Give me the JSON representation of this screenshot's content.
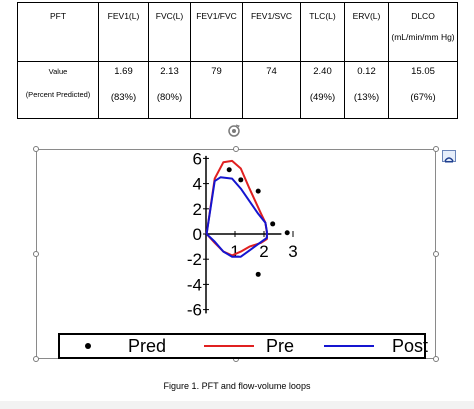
{
  "table": {
    "headers": [
      {
        "lines": [
          "PFT"
        ]
      },
      {
        "lines": [
          "FEV1(L)"
        ]
      },
      {
        "lines": [
          "FVC(L)"
        ]
      },
      {
        "lines": [
          "FEV1/FVC"
        ]
      },
      {
        "lines": [
          "FEV1/SVC"
        ]
      },
      {
        "lines": [
          "TLC(L)"
        ]
      },
      {
        "lines": [
          "ERV(L)"
        ]
      },
      {
        "lines": [
          "DLCO",
          "(mL/min/mm Hg)"
        ]
      }
    ],
    "row_label": [
      "Value",
      "(Percent Predicted)"
    ],
    "rows": [
      {
        "value": "1.69",
        "percent": "(83%)"
      },
      {
        "value": "2.13",
        "percent": "(80%)"
      },
      {
        "value": "79",
        "percent": ""
      },
      {
        "value": "74",
        "percent": ""
      },
      {
        "value": "2.40",
        "percent": "(49%)"
      },
      {
        "value": "0.12",
        "percent": "(13%)"
      },
      {
        "value": "15.05",
        "percent": "(67%)"
      }
    ]
  },
  "chart_data": {
    "type": "line",
    "title": "",
    "xlabel": "",
    "ylabel": "",
    "x_ticks": [
      "1",
      "2",
      "3"
    ],
    "y_ticks": [
      "6",
      "4",
      "2",
      "0",
      "-2",
      "-4",
      "-6"
    ],
    "xlim": [
      0,
      3.5
    ],
    "ylim": [
      -6.5,
      6.5
    ],
    "series": [
      {
        "name": "Pred",
        "style": "points",
        "color": "#000000",
        "points": [
          [
            0.8,
            5.1
          ],
          [
            1.2,
            4.3
          ],
          [
            1.8,
            3.4
          ],
          [
            2.3,
            0.8
          ],
          [
            2.8,
            0.1
          ],
          [
            1.8,
            -3.2
          ]
        ]
      },
      {
        "name": "Pre",
        "style": "line",
        "color": "#e02020",
        "points": [
          [
            0.02,
            0.0
          ],
          [
            0.3,
            4.4
          ],
          [
            0.6,
            5.7
          ],
          [
            0.9,
            5.8
          ],
          [
            1.2,
            5.2
          ],
          [
            1.5,
            3.6
          ],
          [
            1.7,
            2.6
          ],
          [
            1.9,
            1.6
          ],
          [
            2.05,
            0.9
          ],
          [
            2.1,
            0.1
          ],
          [
            2.1,
            -0.4
          ],
          [
            1.9,
            -0.7
          ],
          [
            1.5,
            -1.0
          ],
          [
            1.2,
            -1.4
          ],
          [
            0.9,
            -1.7
          ],
          [
            0.6,
            -1.4
          ],
          [
            0.3,
            -0.7
          ],
          [
            0.02,
            0.0
          ]
        ]
      },
      {
        "name": "Post",
        "style": "line",
        "color": "#1515d0",
        "points": [
          [
            0.02,
            0.0
          ],
          [
            0.3,
            4.2
          ],
          [
            0.5,
            4.5
          ],
          [
            0.9,
            4.4
          ],
          [
            1.2,
            3.6
          ],
          [
            1.5,
            2.6
          ],
          [
            1.8,
            1.6
          ],
          [
            2.05,
            0.9
          ],
          [
            2.1,
            0.2
          ],
          [
            2.1,
            -0.3
          ],
          [
            1.8,
            -0.8
          ],
          [
            1.5,
            -1.3
          ],
          [
            1.2,
            -1.8
          ],
          [
            0.9,
            -1.8
          ],
          [
            0.6,
            -1.4
          ],
          [
            0.3,
            -0.6
          ],
          [
            0.02,
            0.0
          ]
        ]
      }
    ],
    "legend": {
      "placement": "bottom",
      "entries": [
        "Pred",
        "Pre",
        "Post"
      ]
    }
  },
  "caption": "Figure 1. PFT and flow-volume loops"
}
